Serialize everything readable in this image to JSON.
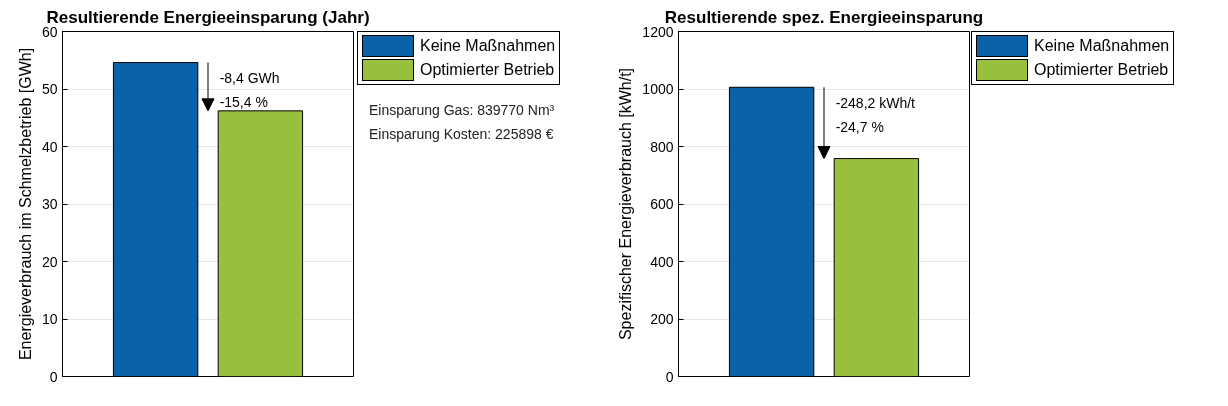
{
  "chart_data": [
    {
      "type": "bar",
      "title": "Resultierende Energieeinsparung (Jahr)",
      "ylabel": "Energieverbrauch im Schmelzbetrieb [GWh]",
      "categories": [
        null
      ],
      "series": [
        {
          "name": "Keine Maßnahmen",
          "color": "#0b62a9",
          "values": [
            54.6
          ]
        },
        {
          "name": "Optimierter Betrieb",
          "color": "#99c03d",
          "values": [
            46.2
          ]
        }
      ],
      "ylim": [
        0,
        60
      ],
      "yticks": [
        0,
        10,
        20,
        30,
        40,
        50,
        60
      ],
      "grid": "y",
      "legend": "top right",
      "tick_labels": "y",
      "annotations": [
        "-8,4 GWh",
        "-15,4 %",
        "Einsparung Gas: 839770 Nm³",
        "Einsparung Kosten: 225898 €"
      ]
    },
    {
      "type": "bar",
      "title": "Resultierende spez. Energieeinsparung",
      "ylabel": "Spezifischer Energieverbrauch [kWh/t]",
      "categories": [
        null
      ],
      "series": [
        {
          "name": "Keine Maßnahmen",
          "color": "#0b62a9",
          "values": [
            1006
          ]
        },
        {
          "name": "Optimierter Betrieb",
          "color": "#99c03d",
          "values": [
            758
          ]
        }
      ],
      "ylim": [
        0,
        1200
      ],
      "yticks": [
        0,
        200,
        400,
        600,
        800,
        1000,
        1200
      ],
      "grid": "y",
      "legend": "top right",
      "tick_labels": "y",
      "annotations": [
        "-248,2 kWh/t",
        "-24,7 %"
      ]
    }
  ]
}
